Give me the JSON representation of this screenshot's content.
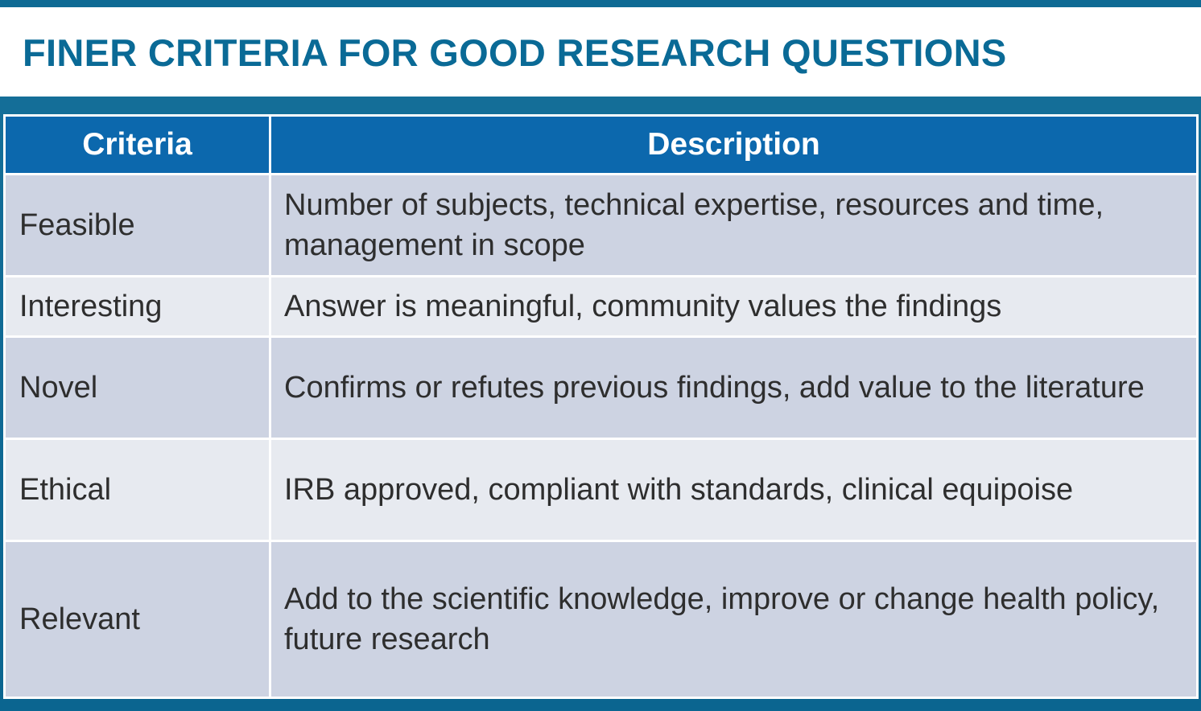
{
  "slide": {
    "title": "FINER CRITERIA FOR GOOD RESEARCH QUESTIONS"
  },
  "table": {
    "headers": [
      "Criteria",
      "Description"
    ],
    "rows": [
      {
        "criteria": "Feasible",
        "description": "Number of subjects, technical expertise, resources and time, management in scope"
      },
      {
        "criteria": "Interesting",
        "description": "Answer is meaningful, community values the findings"
      },
      {
        "criteria": "Novel",
        "description": "Confirms or refutes previous findings, add value to the literature"
      },
      {
        "criteria": "Ethical",
        "description": "IRB approved, compliant with standards, clinical equipoise"
      },
      {
        "criteria": "Relevant",
        "description": "Add to the scientific knowledge, improve or change health policy, future research"
      }
    ]
  },
  "colors": {
    "title": "#0a6a96",
    "frame": "#0e6a94",
    "header_bg": "#0c68ad",
    "row_dark": "#cdd3e2",
    "row_light": "#e7eaf0"
  }
}
